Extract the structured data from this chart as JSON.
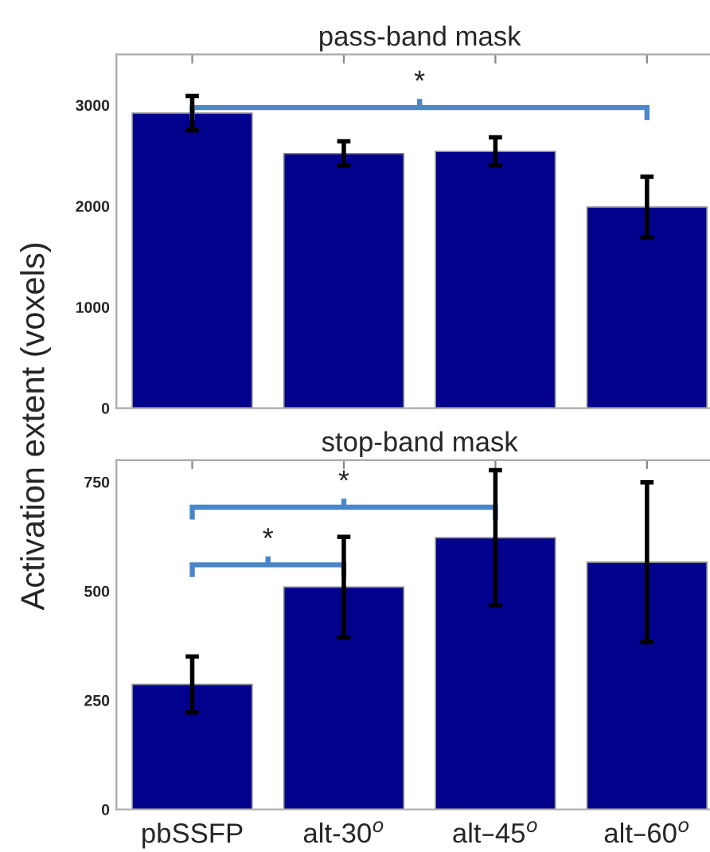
{
  "chart_data": [
    {
      "type": "bar",
      "title": "pass-band mask",
      "ylabel": "Activation extent (voxels)",
      "categories": [
        null,
        null,
        null,
        null
      ],
      "values": [
        2920,
        2520,
        2540,
        1990
      ],
      "errors": [
        170,
        120,
        140,
        300
      ],
      "color": "#02028c",
      "ylim": [
        0,
        3500
      ],
      "yticks": [
        0,
        1000,
        2000,
        3000
      ],
      "tick_labels": "y",
      "grid": false,
      "legend": false,
      "annotations": [
        "*"
      ]
    },
    {
      "type": "bar",
      "title": "stop-band mask",
      "categories": [
        "pbSSFP",
        "alt-30$^{o}$",
        "alt–45$^{o}$",
        "alt–60$^{o}$"
      ],
      "values": [
        286,
        509,
        622,
        566
      ],
      "errors": [
        64,
        115,
        155,
        183
      ],
      "color": "#02028c",
      "ylim": [
        0,
        800
      ],
      "yticks": [
        0,
        250,
        500,
        750
      ],
      "grid": false,
      "legend": false,
      "annotations": [
        "*",
        "*"
      ]
    }
  ]
}
